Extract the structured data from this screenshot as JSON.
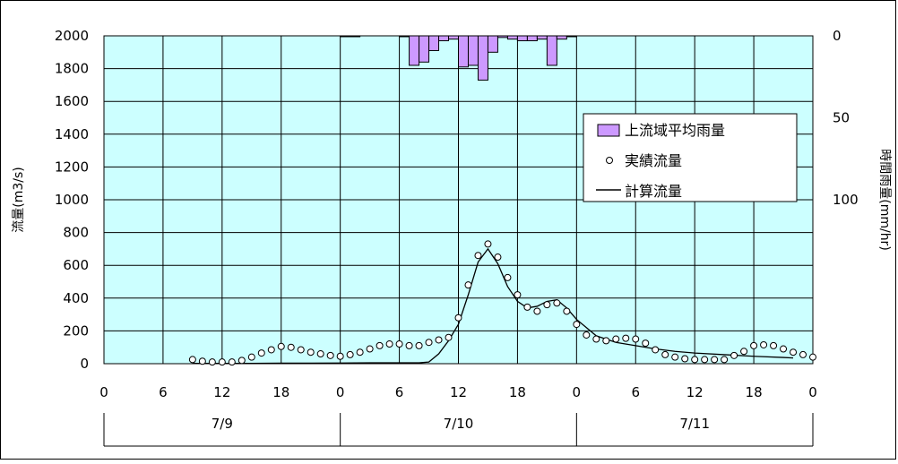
{
  "chart_data": {
    "type": "line",
    "title": "",
    "ylabel_left": "流量(m3/s)",
    "ylabel_right": "時間雨量(mm/hr)",
    "xlabel": "",
    "x_unit": "hours from 7/9 00:00",
    "xlim": [
      0,
      72
    ],
    "ylim_left": [
      0,
      2000
    ],
    "ylim_right_inverted": [
      0,
      100
    ],
    "grid": true,
    "legend_position": "upper-right",
    "x_ticks": [
      0,
      6,
      12,
      18,
      24,
      30,
      36,
      42,
      48,
      54,
      60,
      66,
      72
    ],
    "x_tick_labels": [
      "0",
      "6",
      "12",
      "18",
      "0",
      "6",
      "12",
      "18",
      "0",
      "6",
      "12",
      "18",
      "0"
    ],
    "y_ticks_left": [
      0,
      200,
      400,
      600,
      800,
      1000,
      1200,
      1400,
      1600,
      1800,
      2000
    ],
    "y_ticks_right": [
      0,
      50,
      100
    ],
    "date_labels": [
      "7/9",
      "7/10",
      "7/11"
    ],
    "series": [
      {
        "name": "上流域平均雨量",
        "kind": "bar",
        "axis": "right",
        "x": [
          24,
          25,
          26,
          27,
          28,
          29,
          30,
          31,
          32,
          33,
          34,
          35,
          36,
          37,
          38,
          39,
          40,
          41,
          42,
          43,
          44,
          45,
          46,
          47,
          48
        ],
        "values": [
          0.5,
          0.5,
          0,
          0,
          0,
          0,
          0.5,
          18,
          16,
          9,
          3,
          2,
          19,
          18,
          27,
          10,
          1,
          2,
          3,
          3,
          2,
          18,
          2,
          0.5,
          0
        ]
      },
      {
        "name": "実績流量",
        "kind": "scatter",
        "axis": "left",
        "x": [
          9,
          10,
          11,
          12,
          13,
          14,
          15,
          16,
          17,
          18,
          19,
          20,
          21,
          22,
          23,
          24,
          25,
          26,
          27,
          28,
          29,
          30,
          31,
          32,
          33,
          34,
          35,
          36,
          37,
          38,
          39,
          40,
          41,
          42,
          43,
          44,
          45,
          46,
          47,
          48,
          49,
          50,
          51,
          52,
          53,
          54,
          55,
          56,
          57,
          58,
          59,
          60,
          61,
          62,
          63,
          64,
          65,
          66,
          67,
          68,
          69,
          70,
          71,
          72
        ],
        "values": [
          25,
          15,
          10,
          10,
          10,
          20,
          40,
          65,
          85,
          105,
          100,
          85,
          70,
          60,
          50,
          45,
          55,
          70,
          90,
          110,
          120,
          120,
          110,
          110,
          130,
          145,
          160,
          280,
          480,
          660,
          730,
          650,
          525,
          420,
          345,
          320,
          360,
          370,
          320,
          240,
          175,
          150,
          140,
          150,
          155,
          150,
          125,
          85,
          55,
          40,
          30,
          25,
          25,
          25,
          25,
          50,
          75,
          110,
          115,
          110,
          90,
          70,
          55,
          40
        ]
      },
      {
        "name": "計算流量",
        "kind": "line",
        "axis": "left",
        "x": [
          9,
          12,
          15,
          18,
          21,
          24,
          27,
          30,
          32,
          33,
          34,
          35,
          36,
          37,
          38,
          39,
          40,
          41,
          42,
          43,
          44,
          45,
          46,
          47,
          48,
          50,
          52,
          54,
          56,
          58,
          60,
          63,
          66,
          69,
          70
        ],
        "values": [
          2,
          2,
          2,
          3,
          3,
          4,
          5,
          5,
          5,
          10,
          60,
          140,
          240,
          420,
          620,
          700,
          610,
          470,
          380,
          340,
          350,
          380,
          390,
          340,
          270,
          170,
          130,
          110,
          90,
          75,
          65,
          55,
          45,
          38,
          35
        ]
      }
    ]
  }
}
